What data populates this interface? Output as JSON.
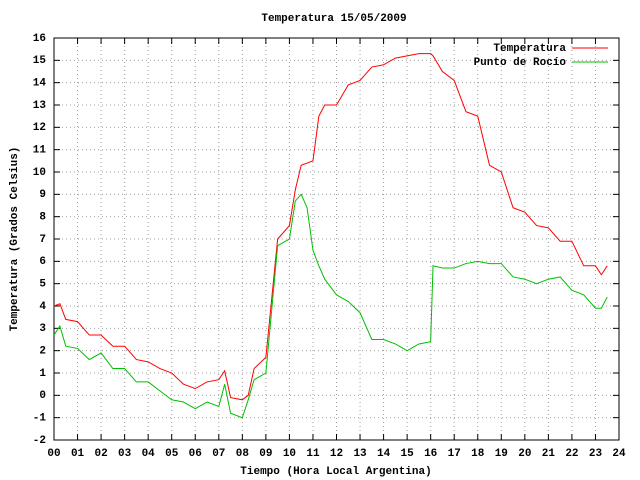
{
  "chart_data": {
    "type": "line",
    "title": "Temperatura 15/05/2009",
    "xlabel": "Tiempo (Hora Local Argentina)",
    "ylabel": "Temperatura (Grados Celsius)",
    "x": [
      0,
      0.25,
      0.5,
      1,
      1.5,
      2,
      2.5,
      3,
      3.5,
      4,
      4.5,
      5,
      5.5,
      6,
      6.5,
      7,
      7.25,
      7.5,
      8,
      8.25,
      8.5,
      9,
      9.5,
      10,
      10.25,
      10.5,
      10.75,
      11,
      11.25,
      11.5,
      12,
      12.5,
      13,
      13.5,
      14,
      14.5,
      15,
      15.5,
      16,
      16.1,
      16.5,
      17,
      17.5,
      18,
      18.5,
      19,
      19.5,
      20,
      20.5,
      21,
      21.5,
      22,
      22.5,
      23,
      23.25,
      23.5
    ],
    "series": [
      {
        "name": "Temperatura",
        "color": "#ff0000",
        "values": [
          4.0,
          4.1,
          3.4,
          3.3,
          2.7,
          2.7,
          2.2,
          2.2,
          1.6,
          1.5,
          1.2,
          1.0,
          0.5,
          0.3,
          0.6,
          0.7,
          1.1,
          -0.1,
          -0.2,
          0.0,
          1.2,
          1.7,
          7.0,
          7.6,
          9.2,
          10.3,
          10.4,
          10.5,
          12.5,
          13.0,
          13.0,
          13.9,
          14.1,
          14.7,
          14.8,
          15.1,
          15.2,
          15.3,
          15.3,
          15.2,
          14.5,
          14.1,
          12.7,
          12.5,
          10.3,
          10.0,
          8.4,
          8.2,
          7.6,
          7.5,
          6.9,
          6.9,
          5.8,
          5.8,
          5.4,
          5.8
        ]
      },
      {
        "name": "Punto de Rocío",
        "color": "#00c000",
        "values": [
          2.7,
          3.1,
          2.2,
          2.1,
          1.6,
          1.9,
          1.2,
          1.2,
          0.6,
          0.6,
          0.2,
          -0.2,
          -0.3,
          -0.6,
          -0.3,
          -0.5,
          0.5,
          -0.8,
          -1.0,
          -0.2,
          0.7,
          1.0,
          6.7,
          7.0,
          8.7,
          9.0,
          8.4,
          6.5,
          5.8,
          5.2,
          4.5,
          4.2,
          3.7,
          2.5,
          2.5,
          2.3,
          2.0,
          2.3,
          2.4,
          5.8,
          5.7,
          5.7,
          5.9,
          6.0,
          5.9,
          5.9,
          5.3,
          5.2,
          5.0,
          5.2,
          5.3,
          4.7,
          4.5,
          3.9,
          3.9,
          4.4
        ]
      }
    ],
    "xlim": [
      0,
      24
    ],
    "xticks": [
      {
        "value": 0,
        "label": "00"
      },
      {
        "value": 1,
        "label": "01"
      },
      {
        "value": 2,
        "label": "02"
      },
      {
        "value": 3,
        "label": "03"
      },
      {
        "value": 4,
        "label": "04"
      },
      {
        "value": 5,
        "label": "05"
      },
      {
        "value": 6,
        "label": "06"
      },
      {
        "value": 7,
        "label": "07"
      },
      {
        "value": 8,
        "label": "08"
      },
      {
        "value": 9,
        "label": "09"
      },
      10,
      11,
      12,
      13,
      14,
      15,
      16,
      17,
      18,
      19,
      20,
      21,
      22,
      23,
      24
    ],
    "ylim": [
      -2,
      16
    ],
    "yticks": [
      -2,
      -1,
      0,
      1,
      2,
      3,
      4,
      5,
      6,
      7,
      8,
      9,
      10,
      11,
      12,
      13,
      14,
      15,
      16
    ],
    "grid": true,
    "legend": "top-right"
  }
}
